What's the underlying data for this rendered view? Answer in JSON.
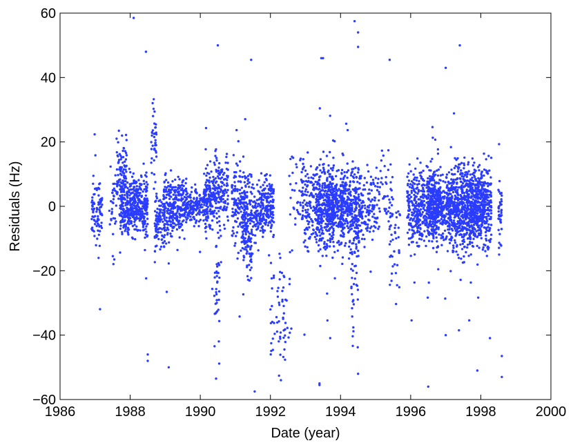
{
  "chart_data": {
    "type": "scatter",
    "title": "",
    "xlabel": "Date (year)",
    "ylabel": "Residuals (Hz)",
    "xlim": [
      1986,
      2000
    ],
    "ylim": [
      -60,
      60
    ],
    "xticks": [
      1986,
      1988,
      1990,
      1992,
      1994,
      1996,
      1998,
      2000
    ],
    "yticks": [
      -60,
      -40,
      -20,
      0,
      20,
      40,
      60
    ],
    "grid": false,
    "marker_color": "#2a3cff",
    "series": [
      {
        "clusters": [
          {
            "start": 1986.9,
            "end": 1987.2,
            "center": -2,
            "spread": 7,
            "count": 90
          },
          {
            "start": 1987.4,
            "end": 1987.6,
            "center": 0,
            "spread": 9,
            "count": 30
          },
          {
            "start": 1987.6,
            "end": 1987.9,
            "center": 10,
            "spread": 8,
            "count": 90
          },
          {
            "start": 1987.7,
            "end": 1988.5,
            "center": 0,
            "spread": 6,
            "count": 420
          },
          {
            "start": 1988.6,
            "end": 1988.75,
            "center": 20,
            "spread": 9,
            "count": 40
          },
          {
            "start": 1988.7,
            "end": 1989.0,
            "center": -5,
            "spread": 6,
            "count": 100
          },
          {
            "start": 1988.95,
            "end": 1989.6,
            "center": 0,
            "spread": 6,
            "count": 280
          },
          {
            "start": 1989.6,
            "end": 1990.2,
            "center": 0,
            "spread": 4,
            "count": 160
          },
          {
            "start": 1990.1,
            "end": 1990.4,
            "center": 3,
            "spread": 7,
            "count": 130
          },
          {
            "start": 1990.4,
            "end": 1990.8,
            "center": 5,
            "spread": 8,
            "count": 140
          },
          {
            "start": 1990.4,
            "end": 1990.55,
            "center": -25,
            "spread": 12,
            "count": 35
          },
          {
            "start": 1990.9,
            "end": 1991.3,
            "center": 0,
            "spread": 8,
            "count": 140
          },
          {
            "start": 1991.2,
            "end": 1991.5,
            "center": -5,
            "spread": 10,
            "count": 160
          },
          {
            "start": 1991.5,
            "end": 1991.7,
            "center": -2,
            "spread": 6,
            "count": 60
          },
          {
            "start": 1991.7,
            "end": 1992.1,
            "center": 0,
            "spread": 6,
            "count": 180
          },
          {
            "start": 1992.0,
            "end": 1992.4,
            "center": -30,
            "spread": 10,
            "count": 45
          },
          {
            "start": 1992.3,
            "end": 1992.6,
            "center": -35,
            "spread": 10,
            "count": 20
          },
          {
            "start": 1992.5,
            "end": 1993.0,
            "center": 5,
            "spread": 10,
            "count": 40
          },
          {
            "start": 1992.9,
            "end": 1993.4,
            "center": 0,
            "spread": 9,
            "count": 150
          },
          {
            "start": 1993.3,
            "end": 1993.8,
            "center": 0,
            "spread": 10,
            "count": 260
          },
          {
            "start": 1993.6,
            "end": 1994.1,
            "center": 0,
            "spread": 8,
            "count": 260
          },
          {
            "start": 1994.0,
            "end": 1994.6,
            "center": 0,
            "spread": 8,
            "count": 300
          },
          {
            "start": 1994.3,
            "end": 1994.5,
            "center": -20,
            "spread": 15,
            "count": 40
          },
          {
            "start": 1994.6,
            "end": 1995.0,
            "center": 0,
            "spread": 8,
            "count": 90
          },
          {
            "start": 1995.0,
            "end": 1995.5,
            "center": 3,
            "spread": 9,
            "count": 60
          },
          {
            "start": 1995.4,
            "end": 1995.7,
            "center": -10,
            "spread": 9,
            "count": 40
          },
          {
            "start": 1995.9,
            "end": 1996.8,
            "center": 0,
            "spread": 8,
            "count": 420
          },
          {
            "start": 1996.5,
            "end": 1997.1,
            "center": 0,
            "spread": 7,
            "count": 360
          },
          {
            "start": 1997.1,
            "end": 1997.6,
            "center": 0,
            "spread": 9,
            "count": 380
          },
          {
            "start": 1997.6,
            "end": 1998.1,
            "center": 0,
            "spread": 8,
            "count": 460
          },
          {
            "start": 1998.1,
            "end": 1998.3,
            "center": 0,
            "spread": 10,
            "count": 120
          },
          {
            "start": 1998.5,
            "end": 1998.6,
            "center": -2,
            "spread": 7,
            "count": 45
          }
        ],
        "outliers": [
          [
            1988.1,
            58.5
          ],
          [
            1988.45,
            48
          ],
          [
            1988.5,
            -46
          ],
          [
            1988.5,
            -48
          ],
          [
            1989.1,
            -50
          ],
          [
            1990.5,
            50
          ],
          [
            1990.45,
            -53.5
          ],
          [
            1991.45,
            45.5
          ],
          [
            1991.55,
            -57.5
          ],
          [
            1992.3,
            -54
          ],
          [
            1993.45,
            46
          ],
          [
            1993.5,
            46
          ],
          [
            1993.4,
            -55
          ],
          [
            1993.4,
            -55.5
          ],
          [
            1994.4,
            57.5
          ],
          [
            1994.5,
            54
          ],
          [
            1994.5,
            49.5
          ],
          [
            1994.5,
            -52
          ],
          [
            1995.4,
            45.5
          ],
          [
            1996.5,
            -56
          ],
          [
            1997.0,
            43
          ],
          [
            1997.0,
            -40
          ],
          [
            1997.4,
            50
          ],
          [
            1997.9,
            -51
          ],
          [
            1998.6,
            -46.5
          ],
          [
            1998.6,
            -53
          ]
        ]
      }
    ]
  }
}
